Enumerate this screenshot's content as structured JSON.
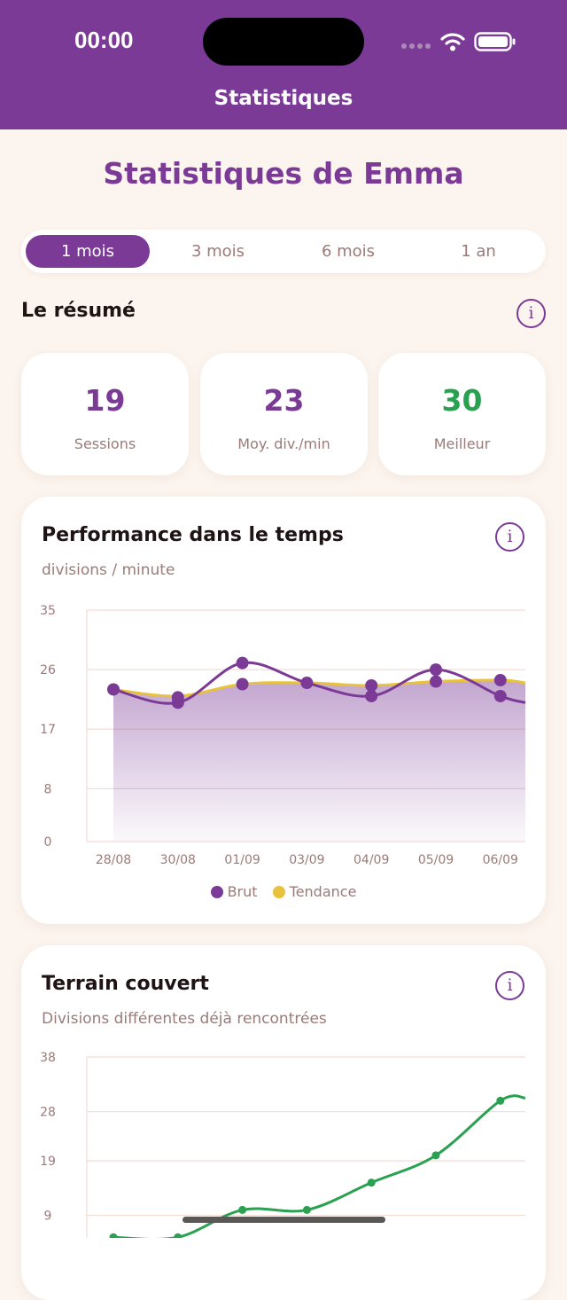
{
  "status_bar": {
    "time": "00:00"
  },
  "header": {
    "title": "Statistiques"
  },
  "page": {
    "heading": "Statistiques de Emma"
  },
  "period_tabs": [
    {
      "label": "1 mois",
      "active": true
    },
    {
      "label": "3 mois",
      "active": false
    },
    {
      "label": "6 mois",
      "active": false
    },
    {
      "label": "1 an",
      "active": false
    }
  ],
  "summary": {
    "title": "Le résumé",
    "info_icon": "info-icon",
    "cards": [
      {
        "value": "19",
        "label": "Sessions"
      },
      {
        "value": "23",
        "label": "Moy. div./min"
      },
      {
        "value": "30",
        "label": "Meilleur"
      }
    ]
  },
  "performance": {
    "title": "Performance dans le temps",
    "subtitle": "divisions / minute",
    "legend": {
      "raw": "Brut",
      "trend": "Tendance"
    }
  },
  "coverage": {
    "title": "Terrain couvert",
    "subtitle": "Divisions différentes déjà rencontrées"
  },
  "colors": {
    "brand": "#7B3A96",
    "trend": "#E8C23A",
    "good": "#2AA150",
    "background": "#FCF4EE",
    "muted": "#9A7B78"
  },
  "chart_data": [
    {
      "type": "line",
      "ylabel": "divisions / minute",
      "ylim": [
        0,
        35
      ],
      "yticks": [
        0,
        8,
        17,
        26,
        35
      ],
      "categories": [
        "28/08",
        "30/08",
        "01/09",
        "03/09",
        "04/09",
        "05/09",
        "06/09"
      ],
      "series": [
        {
          "name": "Brut",
          "color": "#7B3A96",
          "points": [
            [
              0,
              23.0
            ],
            [
              1,
              21.8
            ],
            [
              1,
              21.0
            ],
            [
              2,
              27.0
            ],
            [
              2,
              23.8
            ],
            [
              3,
              24.0
            ],
            [
              4,
              23.6
            ],
            [
              4,
              22.0
            ],
            [
              5,
              26.0
            ],
            [
              5,
              24.2
            ],
            [
              6,
              24.4
            ],
            [
              6,
              22.0
            ]
          ],
          "line": [
            [
              0,
              23.0
            ],
            [
              1,
              21.0
            ],
            [
              2,
              27.0
            ],
            [
              3,
              24.0
            ],
            [
              4,
              22.0
            ],
            [
              5,
              26.0
            ],
            [
              6,
              22.0
            ],
            [
              6.5,
              21.0
            ]
          ]
        },
        {
          "name": "Tendance",
          "color": "#E8C23A",
          "line": [
            [
              0,
              23.0
            ],
            [
              1,
              22.0
            ],
            [
              2,
              23.8
            ],
            [
              3,
              24.0
            ],
            [
              4,
              23.6
            ],
            [
              5,
              24.2
            ],
            [
              6,
              24.4
            ],
            [
              6.5,
              24.0
            ]
          ]
        }
      ],
      "grid": true
    },
    {
      "type": "line",
      "ylabel": "Divisions différentes déjà rencontrées",
      "ylim": [
        0,
        38
      ],
      "yticks": [
        9,
        19,
        28,
        38
      ],
      "series": [
        {
          "color": "#2AA150",
          "points": [
            [
              0,
              5
            ],
            [
              1,
              5
            ],
            [
              2,
              10
            ],
            [
              3,
              10
            ],
            [
              4,
              15
            ],
            [
              5,
              20
            ],
            [
              6,
              30
            ],
            [
              6.4,
              30.5
            ]
          ]
        }
      ],
      "grid": true
    }
  ]
}
